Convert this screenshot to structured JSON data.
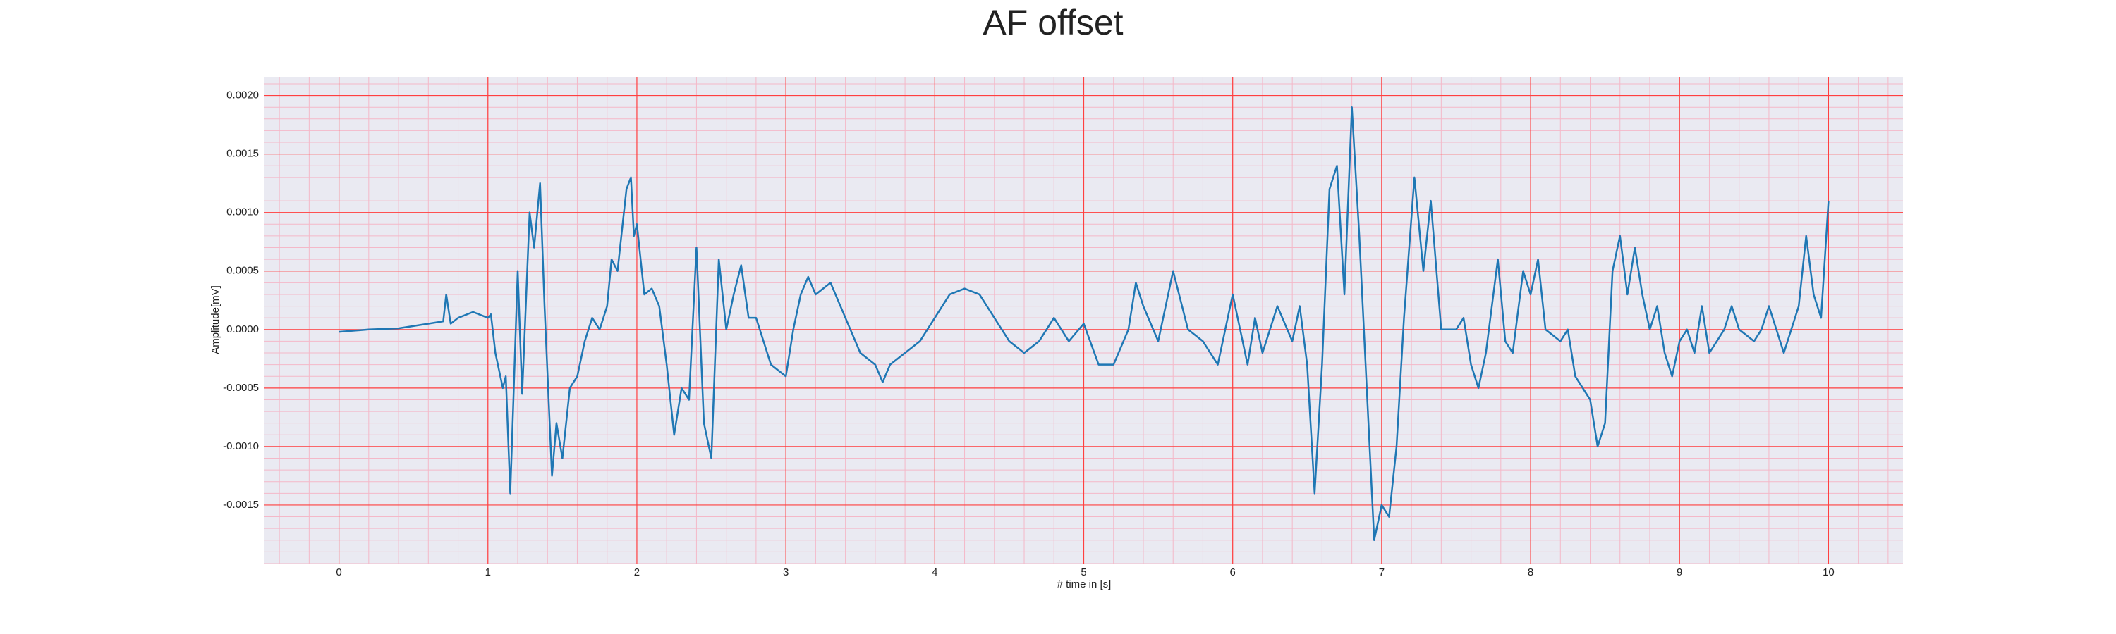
{
  "chart_data": {
    "type": "line",
    "title": "AF offset",
    "xlabel": "# time in [s]",
    "ylabel": "Amplitude[mV]",
    "x": [
      0,
      0.2,
      0.4,
      0.6,
      0.7,
      0.72,
      0.75,
      0.8,
      0.9,
      1.0,
      1.02,
      1.05,
      1.1,
      1.12,
      1.15,
      1.2,
      1.23,
      1.28,
      1.31,
      1.35,
      1.38,
      1.43,
      1.46,
      1.5,
      1.55,
      1.6,
      1.65,
      1.7,
      1.75,
      1.8,
      1.83,
      1.87,
      1.93,
      1.96,
      1.98,
      2.0,
      2.05,
      2.1,
      2.15,
      2.2,
      2.25,
      2.3,
      2.35,
      2.4,
      2.45,
      2.5,
      2.55,
      2.6,
      2.65,
      2.7,
      2.75,
      2.8,
      2.9,
      3.0,
      3.05,
      3.1,
      3.15,
      3.2,
      3.3,
      3.4,
      3.5,
      3.6,
      3.65,
      3.7,
      3.8,
      3.9,
      4.0,
      4.1,
      4.2,
      4.3,
      4.4,
      4.5,
      4.6,
      4.7,
      4.8,
      4.9,
      5.0,
      5.1,
      5.2,
      5.3,
      5.35,
      5.4,
      5.5,
      5.6,
      5.7,
      5.8,
      5.9,
      6.0,
      6.1,
      6.15,
      6.2,
      6.3,
      6.4,
      6.45,
      6.5,
      6.55,
      6.6,
      6.65,
      6.7,
      6.75,
      6.8,
      6.85,
      6.9,
      6.95,
      7.0,
      7.05,
      7.1,
      7.15,
      7.22,
      7.28,
      7.33,
      7.4,
      7.5,
      7.55,
      7.6,
      7.65,
      7.7,
      7.78,
      7.83,
      7.88,
      7.95,
      8.0,
      8.05,
      8.1,
      8.2,
      8.25,
      8.3,
      8.4,
      8.45,
      8.5,
      8.55,
      8.6,
      8.65,
      8.7,
      8.75,
      8.8,
      8.85,
      8.9,
      8.95,
      9.0,
      9.05,
      9.1,
      9.15,
      9.2,
      9.3,
      9.35,
      9.4,
      9.5,
      9.55,
      9.6,
      9.65,
      9.7,
      9.75,
      9.8,
      9.85,
      9.9,
      9.95,
      10.0
    ],
    "series": [
      {
        "name": "AF offset",
        "color": "#1f77b4",
        "values": [
          -2e-05,
          0,
          1e-05,
          5e-05,
          7e-05,
          0.0003,
          5e-05,
          0.0001,
          0.00015,
          0.0001,
          0.00013,
          -0.0002,
          -0.0005,
          -0.0004,
          -0.0014,
          0.0005,
          -0.00055,
          0.001,
          0.0007,
          0.00125,
          0.0002,
          -0.00125,
          -0.0008,
          -0.0011,
          -0.0005,
          -0.0004,
          -0.0001,
          0.0001,
          0,
          0.0002,
          0.0006,
          0.0005,
          0.0012,
          0.0013,
          0.0008,
          0.0009,
          0.0003,
          0.00035,
          0.0002,
          -0.0003,
          -0.0009,
          -0.0005,
          -0.0006,
          0.0007,
          -0.0008,
          -0.0011,
          0.0006,
          0,
          0.0003,
          0.00055,
          0.0001,
          0.0001,
          -0.0003,
          -0.0004,
          0,
          0.0003,
          0.00045,
          0.0003,
          0.0004,
          0.0001,
          -0.0002,
          -0.0003,
          -0.00045,
          -0.0003,
          -0.0002,
          -0.0001,
          0.0001,
          0.0003,
          0.00035,
          0.0003,
          0.0001,
          -0.0001,
          -0.0002,
          -0.0001,
          0.0001,
          -0.0001,
          5e-05,
          -0.0003,
          -0.0003,
          0,
          0.0004,
          0.0002,
          -0.0001,
          0.0005,
          0,
          -0.0001,
          -0.0003,
          0.0003,
          -0.0003,
          0.0001,
          -0.0002,
          0.0002,
          -0.0001,
          0.0002,
          -0.0003,
          -0.0014,
          -0.0003,
          0.0012,
          0.0014,
          0.0003,
          0.0019,
          0.0008,
          -0.0005,
          -0.0018,
          -0.0015,
          -0.0016,
          -0.001,
          0.0001,
          0.0013,
          0.0005,
          0.0011,
          0,
          0,
          0.0001,
          -0.0003,
          -0.0005,
          -0.0002,
          0.0006,
          -0.0001,
          -0.0002,
          0.0005,
          0.0003,
          0.0006,
          0,
          -0.0001,
          0,
          -0.0004,
          -0.0006,
          -0.001,
          -0.0008,
          0.0005,
          0.0008,
          0.0003,
          0.0007,
          0.0003,
          0,
          0.0002,
          -0.0002,
          -0.0004,
          -0.0001,
          0,
          -0.0002,
          0.0002,
          -0.0002,
          0,
          0.0002,
          0,
          -0.0001,
          0,
          0.0002,
          0,
          -0.0002,
          0,
          0.0002,
          0.0008,
          0.0003,
          0.0001,
          0.0011
        ]
      }
    ],
    "xlim": [
      -0.5,
      10.5
    ],
    "ylim": [
      -0.002,
      0.00216
    ],
    "xticks": [
      0,
      1,
      2,
      3,
      4,
      5,
      6,
      7,
      8,
      9,
      10
    ],
    "yticks": [
      {
        "value": -0.0015,
        "label": "-0.0015"
      },
      {
        "value": -0.001,
        "label": "-0.0010"
      },
      {
        "value": -0.0005,
        "label": "-0.0005"
      },
      {
        "value": 0,
        "label": "0.0000"
      },
      {
        "value": 0.0005,
        "label": "0.0005"
      },
      {
        "value": 0.001,
        "label": "0.0010"
      },
      {
        "value": 0.0015,
        "label": "0.0015"
      },
      {
        "value": 0.002,
        "label": "0.0020"
      }
    ],
    "grid": true,
    "minor_grid": true,
    "grid_color": "#ff4040",
    "minor_grid_color": "#f4b8c8",
    "background": "#eaeaf2"
  }
}
